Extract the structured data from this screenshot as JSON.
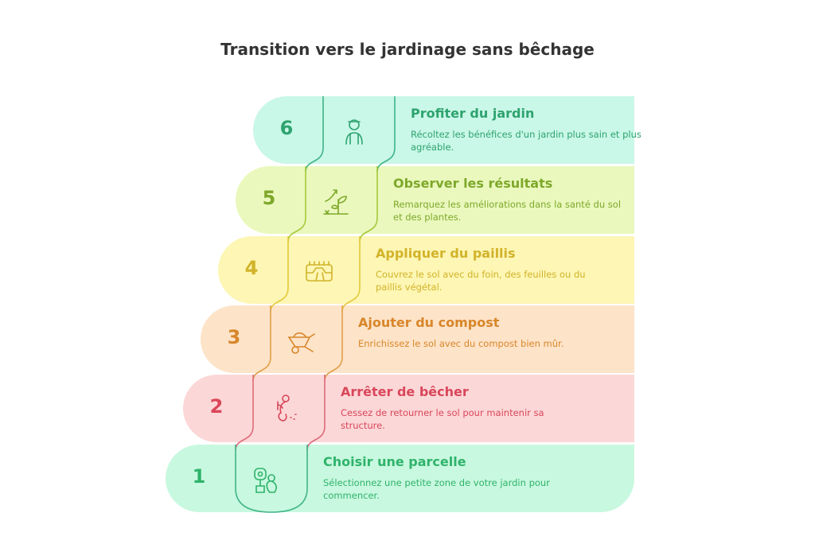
{
  "title": "Transition vers le jardinage sans bêchage",
  "steps": [
    {
      "number": "6",
      "heading": "Profiter du jardin",
      "description": "Récoltez les bénéfices d'un jardin plus sain et plus agréable.",
      "icon": "gardener-icon",
      "bg": "#c9f7e8",
      "color": "#2ea36f",
      "line": "#3fb487"
    },
    {
      "number": "5",
      "heading": "Observer les résultats",
      "description": "Remarquez les améliorations dans la santé du sol et des plantes.",
      "icon": "plant-growth-icon",
      "bg": "#eaf8bd",
      "color": "#7ea82a",
      "line": "#a6c83a"
    },
    {
      "number": "4",
      "heading": "Appliquer du paillis",
      "description": "Couvrez le sol avec du foin, des feuilles ou du paillis végétal.",
      "icon": "mulch-icon",
      "bg": "#fdf6b4",
      "color": "#d2b32a",
      "line": "#e3c93a"
    },
    {
      "number": "3",
      "heading": "Ajouter du compost",
      "description": "Enrichissez le sol avec du compost bien mûr.",
      "icon": "wheelbarrow-icon",
      "bg": "#fde3c8",
      "color": "#d8862a",
      "line": "#e0a04a"
    },
    {
      "number": "2",
      "heading": "Arrêter de bêcher",
      "description": "Cessez de retourner le sol pour maintenir sa structure.",
      "icon": "digging-person-icon",
      "bg": "#fcd7d7",
      "color": "#d9465a",
      "line": "#dd6a7a"
    },
    {
      "number": "1",
      "heading": "Choisir une parcelle",
      "description": "Sélectionnez une petite zone de votre jardin pour commencer.",
      "icon": "flower-person-icon",
      "bg": "#c8f8df",
      "color": "#2fb36b",
      "line": "#3fb487"
    }
  ]
}
